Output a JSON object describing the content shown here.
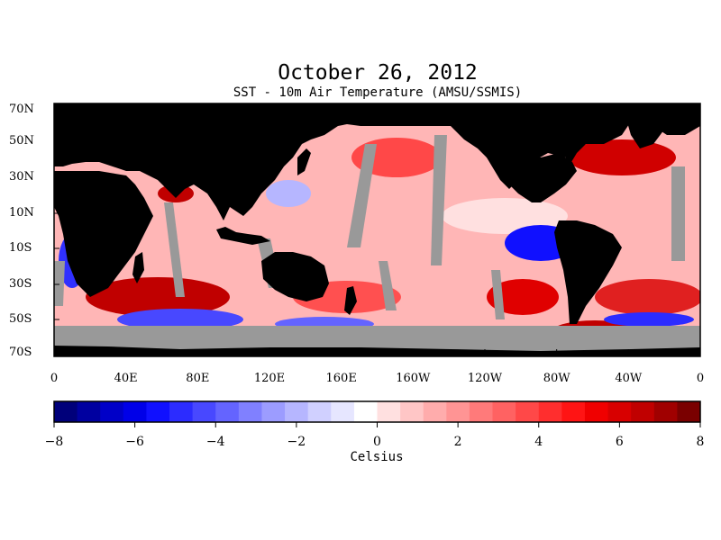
{
  "title": "October 26, 2012",
  "subtitle": "SST - 10m Air Temperature (AMSU/SSMIS)",
  "colorbar": {
    "unit": "Celsius",
    "min": -8,
    "max": 8,
    "tick_labels": [
      "−8",
      "−6",
      "−4",
      "−2",
      "0",
      "2",
      "4",
      "6",
      "8"
    ],
    "colors": [
      "#00007a",
      "#0000a0",
      "#0000c8",
      "#0000e8",
      "#1010ff",
      "#2c2cff",
      "#4848ff",
      "#6464ff",
      "#8080ff",
      "#9c9cff",
      "#b6b6ff",
      "#d0d0ff",
      "#e6e6ff",
      "#ffffff",
      "#ffe0e0",
      "#ffc6c6",
      "#ffacac",
      "#ff9494",
      "#ff7a7a",
      "#ff6262",
      "#ff4848",
      "#ff2e2e",
      "#ff1414",
      "#f00000",
      "#d80000",
      "#c00000",
      "#a00000",
      "#7a0000"
    ]
  },
  "map": {
    "land_color": "#000000",
    "missing_color": "#999999",
    "lat_labels": [
      "70N",
      "50N",
      "30N",
      "10N",
      "10S",
      "30S",
      "50S",
      "70S"
    ],
    "lon_labels": [
      "0",
      "40E",
      "80E",
      "120E",
      "160E",
      "160W",
      "120W",
      "80W",
      "40W",
      "0"
    ]
  }
}
